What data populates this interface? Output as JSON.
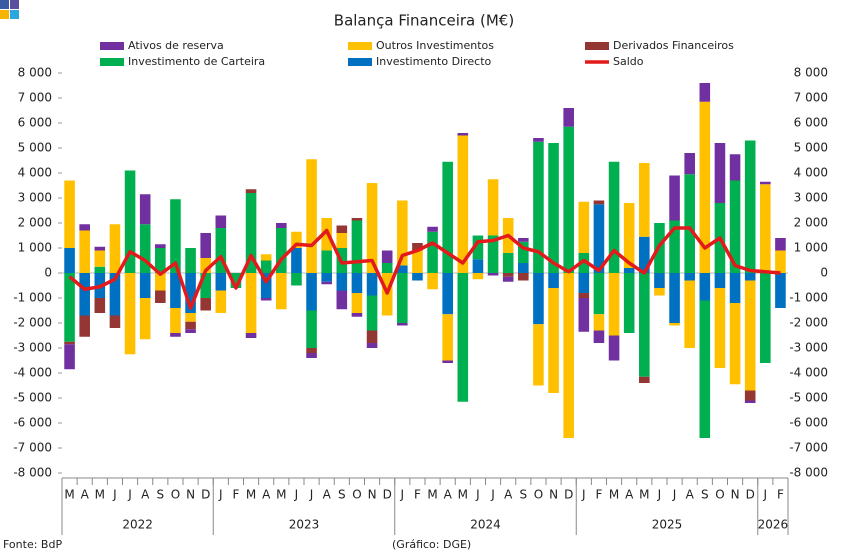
{
  "chart_data": {
    "type": "bar",
    "stacked": true,
    "title": "Balança Financeira (M€)",
    "source": "Fonte: BdP",
    "credit": "(Gráfico: DGE)",
    "categories": [
      "M",
      "A",
      "M",
      "J",
      "J",
      "A",
      "S",
      "O",
      "N",
      "D",
      "J",
      "F",
      "M",
      "A",
      "M",
      "J",
      "J",
      "A",
      "S",
      "O",
      "N",
      "D",
      "J",
      "F",
      "M",
      "A",
      "M",
      "J",
      "J",
      "A",
      "S",
      "O",
      "N",
      "D",
      "J",
      "F",
      "M",
      "A",
      "M",
      "J",
      "J",
      "A",
      "S",
      "O",
      "N",
      "D",
      "J",
      "F"
    ],
    "years": [
      "2022",
      "2023",
      "2024",
      "2025",
      "2026"
    ],
    "series": [
      {
        "name": "Investimento Directo",
        "color": "#0070c0",
        "values": [
          1000,
          -1700,
          -1000,
          -1700,
          0,
          -1000,
          0,
          -1400,
          -1600,
          0,
          -700,
          0,
          0,
          -1000,
          0,
          1000,
          -1500,
          -350,
          -700,
          -800,
          -900,
          0,
          300,
          -300,
          0,
          -1650,
          0,
          550,
          0,
          0,
          400,
          -2050,
          -600,
          0,
          -800,
          2750,
          0,
          200,
          1450,
          -600,
          -2000,
          -300,
          -1100,
          -600,
          -1200,
          -300,
          0,
          -1400
        ]
      },
      {
        "name": "Investimento de Carteira",
        "color": "#00b050",
        "values": [
          -2750,
          0,
          250,
          0,
          4100,
          1950,
          1000,
          2950,
          1000,
          -1000,
          1800,
          -600,
          3200,
          500,
          1800,
          -500,
          -1500,
          900,
          1000,
          2100,
          -1400,
          400,
          -2000,
          0,
          1650,
          4450,
          -5150,
          950,
          1500,
          800,
          850,
          5250,
          5200,
          5850,
          800,
          -1650,
          4450,
          -2400,
          -4150,
          2000,
          2100,
          3950,
          -5500,
          2800,
          3700,
          5300,
          -3600,
          0
        ]
      },
      {
        "name": "Outros Investimentos",
        "color": "#ffc000",
        "values": [
          2700,
          1700,
          650,
          1950,
          -3250,
          -1650,
          -700,
          -1000,
          -350,
          600,
          -900,
          0,
          -2400,
          250,
          -1450,
          650,
          4550,
          1300,
          600,
          -800,
          3600,
          -1700,
          2600,
          900,
          -650,
          -1850,
          5500,
          -250,
          2250,
          1400,
          0,
          -2450,
          -4200,
          -6600,
          2050,
          -650,
          -2500,
          2600,
          2950,
          -300,
          -100,
          -2700,
          6850,
          -3200,
          -3250,
          -4400,
          3550,
          900
        ]
      },
      {
        "name": "Derivados Financeiros",
        "color": "#943634",
        "values": [
          -100,
          -850,
          -600,
          -500,
          0,
          0,
          -500,
          0,
          -300,
          -500,
          0,
          0,
          150,
          0,
          0,
          0,
          -200,
          0,
          300,
          100,
          -500,
          0,
          0,
          300,
          0,
          0,
          0,
          0,
          0,
          -150,
          -300,
          0,
          0,
          0,
          -200,
          150,
          0,
          0,
          -250,
          0,
          0,
          0,
          0,
          0,
          0,
          -400,
          0,
          0
        ]
      },
      {
        "name": "Ativos de reserva",
        "color": "#7030a0",
        "values": [
          -1000,
          250,
          150,
          0,
          0,
          1200,
          150,
          -150,
          -150,
          1000,
          500,
          0,
          -200,
          -100,
          200,
          0,
          -200,
          -100,
          -750,
          -150,
          -200,
          500,
          -100,
          0,
          200,
          -100,
          100,
          0,
          -100,
          -200,
          150,
          150,
          0,
          750,
          -1350,
          -500,
          -1000,
          0,
          0,
          0,
          1800,
          850,
          750,
          2400,
          1050,
          -100,
          100,
          500
        ]
      },
      {
        "name": "Saldo",
        "type": "line",
        "color": "#e31a1c",
        "values": [
          -150,
          -650,
          -550,
          -250,
          850,
          500,
          -50,
          400,
          -1400,
          100,
          650,
          -600,
          700,
          -350,
          550,
          1150,
          1100,
          1700,
          400,
          450,
          500,
          -800,
          700,
          900,
          1200,
          800,
          400,
          1250,
          1300,
          1500,
          1000,
          850,
          400,
          50,
          500,
          100,
          900,
          400,
          0,
          1100,
          1800,
          1800,
          1000,
          1400,
          300,
          100,
          50,
          0
        ]
      }
    ],
    "ylim": [
      -8000,
      8000
    ],
    "yticks": [
      {
        "value": -8000,
        "label": "-8 000"
      },
      {
        "value": -7000,
        "label": "-7 000"
      },
      {
        "value": -6000,
        "label": "-6 000"
      },
      {
        "value": -5000,
        "label": "-5 000"
      },
      {
        "value": -4000,
        "label": "-4 000"
      },
      {
        "value": -3000,
        "label": "-3 000"
      },
      {
        "value": -2000,
        "label": "-2 000"
      },
      {
        "value": -1000,
        "label": "-1 000"
      },
      0,
      {
        "value": 1000,
        "label": "1 000"
      },
      {
        "value": 2000,
        "label": "2 000"
      },
      {
        "value": 3000,
        "label": "3 000"
      },
      {
        "value": 4000,
        "label": "4 000"
      },
      {
        "value": 5000,
        "label": "5 000"
      },
      {
        "value": 6000,
        "label": "6 000"
      },
      {
        "value": 7000,
        "label": "7 000"
      },
      {
        "value": 8000,
        "label": "8 000"
      }
    ],
    "y2lim": [
      -8000,
      8000
    ],
    "y2ticks": [
      {
        "value": -8000,
        "label": "-8 000"
      },
      {
        "value": -7000,
        "label": "-7 000"
      },
      {
        "value": -6000,
        "label": "-6 000"
      },
      {
        "value": -5000,
        "label": "-5 000"
      },
      {
        "value": -4000,
        "label": "-4 000"
      },
      {
        "value": -3000,
        "label": "-3 000"
      },
      {
        "value": -2000,
        "label": "-2 000"
      },
      {
        "value": -1000,
        "label": "-1 000"
      },
      0,
      {
        "value": 1000,
        "label": "1 000"
      },
      {
        "value": 2000,
        "label": "2 000"
      },
      {
        "value": 3000,
        "label": "3 000"
      },
      {
        "value": 4000,
        "label": "4 000"
      },
      {
        "value": 5000,
        "label": "5 000"
      },
      {
        "value": 6000,
        "label": "6 000"
      },
      {
        "value": 7000,
        "label": "7 000"
      },
      {
        "value": 8000,
        "label": "8 000"
      }
    ],
    "grid": false
  }
}
